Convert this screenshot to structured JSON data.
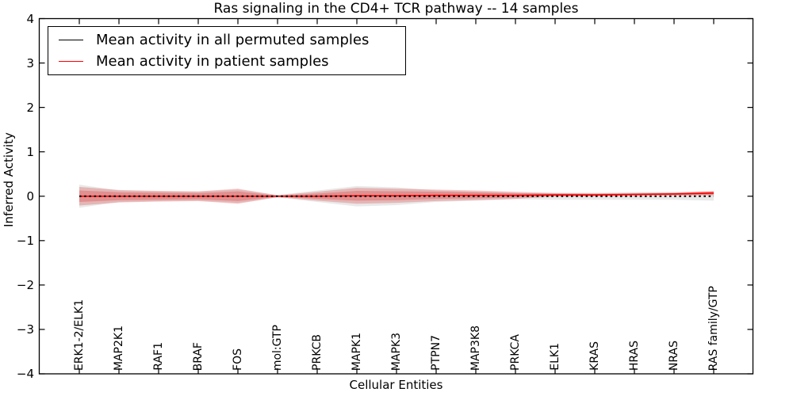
{
  "chart_data": {
    "type": "line",
    "title": "Ras signaling in the CD4+ TCR pathway -- 14 samples",
    "xlabel": "Cellular Entities",
    "ylabel": "Inferred Activity",
    "ylim": [
      -4,
      4
    ],
    "yticks": [
      4,
      3,
      2,
      1,
      0,
      -1,
      -2,
      -3,
      -4
    ],
    "grid": false,
    "categories": [
      "ERK1-2/ELK1",
      "MAP2K1",
      "RAF1",
      "BRAF",
      "FOS",
      "mol:GTP",
      "PRKCB",
      "MAPK1",
      "MAPK3",
      "PTPN7",
      "MAP3K8",
      "PRKCA",
      "ELK1",
      "KRAS",
      "HRAS",
      "NRAS",
      "RAS family/GTP"
    ],
    "series": [
      {
        "name": "Mean activity in all permuted samples",
        "color": "#000000",
        "line_style": "dashed",
        "values": [
          0,
          0,
          0,
          0,
          0,
          0,
          0,
          0,
          0,
          0,
          0,
          0,
          0,
          0,
          0,
          0,
          0
        ]
      },
      {
        "name": "Mean activity in patient samples",
        "color": "#ff0000",
        "line_style": "solid",
        "values": [
          0,
          0,
          0,
          0,
          0,
          0,
          0,
          0.01,
          0.01,
          0.02,
          0.02,
          0.02,
          0.03,
          0.03,
          0.04,
          0.05,
          0.07
        ]
      }
    ],
    "bands": [
      {
        "name": "permuted-samples-spread",
        "color": "#999999",
        "opacity": 0.22,
        "center_series": 0,
        "half_widths": [
          0.26,
          0.13,
          0.11,
          0.1,
          0.15,
          0.03,
          0.13,
          0.23,
          0.2,
          0.13,
          0.1,
          0.07,
          0.08,
          0.08,
          0.08,
          0.08,
          0.1
        ]
      },
      {
        "name": "patient-samples-spread-outer",
        "color": "#d93434",
        "opacity": 0.28,
        "center_series": 1,
        "half_widths": [
          0.21,
          0.14,
          0.12,
          0.11,
          0.17,
          0.02,
          0.1,
          0.18,
          0.16,
          0.13,
          0.11,
          0.08,
          0.04,
          0.035,
          0.035,
          0.035,
          0.05
        ]
      },
      {
        "name": "patient-samples-spread-inner",
        "color": "#d93434",
        "opacity": 0.3,
        "center_series": 1,
        "half_widths": [
          0.13,
          0.09,
          0.08,
          0.07,
          0.11,
          0.01,
          0.06,
          0.11,
          0.1,
          0.08,
          0.07,
          0.05,
          0.025,
          0.02,
          0.02,
          0.02,
          0.035
        ]
      }
    ],
    "legend": {
      "position": "upper-left",
      "entries": [
        {
          "label": "Mean activity in all permuted samples",
          "color": "#000000"
        },
        {
          "label": "Mean activity in patient samples",
          "color": "#ff0000"
        }
      ]
    }
  }
}
